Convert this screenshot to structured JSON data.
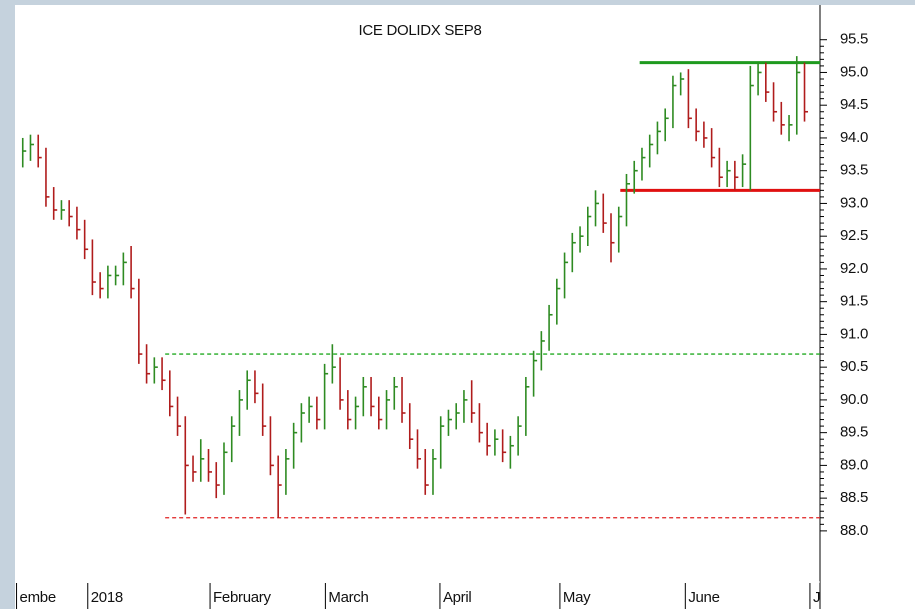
{
  "chart_data": {
    "type": "ohlc",
    "title": "ICE DOLIDX SEP8",
    "up_color": "#2e8b22",
    "down_color": "#b01c1c",
    "xlim": [
      -1,
      103
    ],
    "xticks": [
      {
        "value": -0.8,
        "label": "embe"
      },
      {
        "value": 8.4,
        "label": "2018"
      },
      {
        "value": 24.2,
        "label": "February"
      },
      {
        "value": 39.1,
        "label": "March"
      },
      {
        "value": 53.9,
        "label": "April"
      },
      {
        "value": 69.4,
        "label": "May"
      },
      {
        "value": 85.6,
        "label": "June"
      },
      {
        "value": 101.7,
        "label": "J"
      }
    ],
    "ylim": [
      87.25,
      96.03
    ],
    "yaxis_side": "right",
    "yticks": [
      {
        "value": 88,
        "label": "88.0"
      },
      88.5,
      {
        "value": 89,
        "label": "89.0"
      },
      89.5,
      {
        "value": 90,
        "label": "90.0"
      },
      90.5,
      {
        "value": 91,
        "label": "91.0"
      },
      91.5,
      {
        "value": 92,
        "label": "92.0"
      },
      92.5,
      {
        "value": 93,
        "label": "93.0"
      },
      93.5,
      {
        "value": 94,
        "label": "94.0"
      },
      94.5,
      {
        "value": 95,
        "label": "95.0"
      },
      95.5
    ],
    "close": [
      93.8,
      93.9,
      93.7,
      93.1,
      92.9,
      92.9,
      92.8,
      92.6,
      92.3,
      91.8,
      91.7,
      91.9,
      91.9,
      92.1,
      91.7,
      90.7,
      90.4,
      90.5,
      90.3,
      89.9,
      89.6,
      89.0,
      88.9,
      89.1,
      88.9,
      88.7,
      89.2,
      89.6,
      90.0,
      90.3,
      90.1,
      89.6,
      89.0,
      88.7,
      89.1,
      89.5,
      89.8,
      89.9,
      89.7,
      90.4,
      90.5,
      90.0,
      89.7,
      89.9,
      90.2,
      89.9,
      89.7,
      90.0,
      90.2,
      89.8,
      89.4,
      89.1,
      88.7,
      89.1,
      89.6,
      89.7,
      89.8,
      90.0,
      89.8,
      89.5,
      89.3,
      89.4,
      89.2,
      89.3,
      89.6,
      90.2,
      90.6,
      90.9,
      91.3,
      91.7,
      92.1,
      92.4,
      92.5,
      92.8,
      93.0,
      92.7,
      92.4,
      92.8,
      93.3,
      93.5,
      93.7,
      93.9,
      94.1,
      94.3,
      94.8,
      94.9,
      94.3,
      94.1,
      94.0,
      93.7,
      93.4,
      93.5,
      93.4,
      93.6,
      94.8,
      95.0,
      94.7,
      94.4,
      94.2,
      94.2,
      95.0,
      94.4
    ],
    "high": [
      94.0,
      94.05,
      94.05,
      93.85,
      93.25,
      93.05,
      93.05,
      92.95,
      92.75,
      92.45,
      91.95,
      92.05,
      92.05,
      92.25,
      92.35,
      91.85,
      90.85,
      90.65,
      90.65,
      90.45,
      90.05,
      89.75,
      89.15,
      89.4,
      89.25,
      89.05,
      89.35,
      89.75,
      90.15,
      90.45,
      90.45,
      90.25,
      89.75,
      89.15,
      89.25,
      89.65,
      89.95,
      90.05,
      90.05,
      90.55,
      90.85,
      90.65,
      90.15,
      90.05,
      90.35,
      90.35,
      90.05,
      90.15,
      90.35,
      90.35,
      89.95,
      89.55,
      89.25,
      89.25,
      89.75,
      89.85,
      89.95,
      90.15,
      90.3,
      89.95,
      89.65,
      89.55,
      89.55,
      89.45,
      89.75,
      90.35,
      90.75,
      91.05,
      91.45,
      91.85,
      92.25,
      92.55,
      92.65,
      92.95,
      93.2,
      93.15,
      92.85,
      92.95,
      93.45,
      93.65,
      93.85,
      94.05,
      94.25,
      94.45,
      94.95,
      95.0,
      95.05,
      94.45,
      94.25,
      94.15,
      93.85,
      93.65,
      93.65,
      93.75,
      95.1,
      95.15,
      95.15,
      94.85,
      94.55,
      94.35,
      95.25,
      95.15
    ],
    "low": [
      93.55,
      93.65,
      93.55,
      92.95,
      92.75,
      92.75,
      92.65,
      92.45,
      92.15,
      91.6,
      91.55,
      91.55,
      91.75,
      91.75,
      91.55,
      90.55,
      90.25,
      90.25,
      90.15,
      89.75,
      89.45,
      88.25,
      88.75,
      88.75,
      88.75,
      88.5,
      88.55,
      89.05,
      89.45,
      89.85,
      89.95,
      89.45,
      88.85,
      88.2,
      88.55,
      88.95,
      89.35,
      89.65,
      89.55,
      89.55,
      90.25,
      89.85,
      89.55,
      89.55,
      89.75,
      89.75,
      89.55,
      89.55,
      89.85,
      89.65,
      89.25,
      88.95,
      88.55,
      88.55,
      88.95,
      89.45,
      89.55,
      89.65,
      89.65,
      89.35,
      89.15,
      89.15,
      89.05,
      88.95,
      89.15,
      89.45,
      90.05,
      90.45,
      90.75,
      91.15,
      91.55,
      91.95,
      92.25,
      92.35,
      92.65,
      92.55,
      92.1,
      92.25,
      92.65,
      93.15,
      93.35,
      93.55,
      93.75,
      93.95,
      94.15,
      94.65,
      94.15,
      93.95,
      93.85,
      93.55,
      93.25,
      93.25,
      93.2,
      93.25,
      93.2,
      94.65,
      94.55,
      94.25,
      94.05,
      93.95,
      94.05,
      94.25
    ],
    "levels": [
      {
        "value": 90.7,
        "color": "#22aa22",
        "style": "dashed",
        "start": 18.4
      },
      {
        "value": 88.2,
        "color": "#e02020",
        "style": "dashed",
        "start": 18.4
      },
      {
        "value": 95.15,
        "color": "#1e9a1e",
        "style": "solid",
        "start": 79.7
      },
      {
        "value": 93.2,
        "color": "#e01010",
        "style": "solid",
        "start": 77.2
      }
    ]
  }
}
